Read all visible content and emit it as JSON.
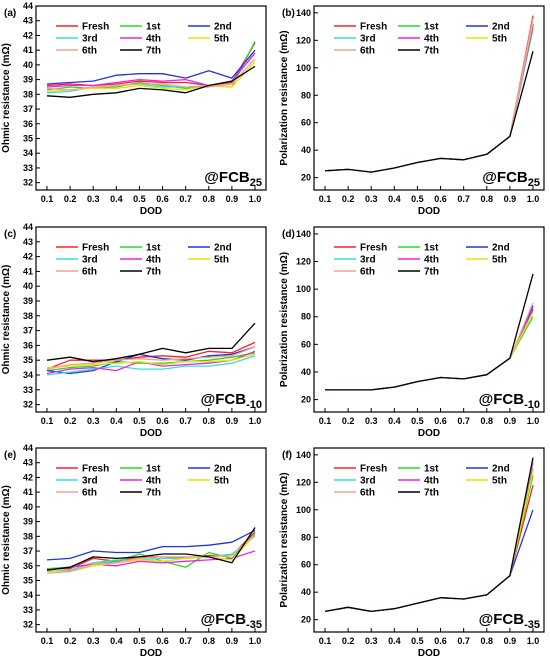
{
  "legend_order": [
    "Fresh",
    "1st",
    "2nd",
    "3rd",
    "4th",
    "5th",
    "6th",
    "7th"
  ],
  "colors": {
    "Fresh": "#ff2020",
    "1st": "#22dd22",
    "2nd": "#2233dd",
    "3rd": "#33e0e0",
    "4th": "#ee22ee",
    "5th": "#e6e600",
    "6th": "#f4a090",
    "7th": "#000000"
  },
  "chart_data": [
    {
      "type": "line",
      "panel": "(a)",
      "annotation": {
        "prefix": "@FCB",
        "sub": "25"
      },
      "xlabel": "DOD",
      "ylabel": "Ohmic resistance (mΩ)",
      "x": [
        "0.1",
        "0.2",
        "0.3",
        "0.4",
        "0.5",
        "0.6",
        "0.7",
        "0.8",
        "0.9",
        "1.0"
      ],
      "ylim": [
        31.5,
        44
      ],
      "yticks": [
        32,
        33,
        34,
        35,
        36,
        37,
        38,
        39,
        40,
        41,
        42,
        43,
        44
      ],
      "series": [
        {
          "name": "Fresh",
          "values": [
            38.6,
            38.7,
            38.6,
            38.7,
            38.9,
            38.8,
            38.8,
            38.6,
            38.8,
            41.5
          ]
        },
        {
          "name": "1st",
          "values": [
            38.3,
            38.5,
            38.4,
            38.5,
            38.8,
            38.6,
            38.4,
            38.6,
            38.5,
            41.6
          ]
        },
        {
          "name": "2nd",
          "values": [
            38.7,
            38.8,
            38.9,
            39.3,
            39.4,
            39.4,
            39.1,
            39.6,
            39.1,
            41.0
          ]
        },
        {
          "name": "3rd",
          "values": [
            38.1,
            38.2,
            38.5,
            38.6,
            38.7,
            38.5,
            38.5,
            38.6,
            38.9,
            40.8
          ]
        },
        {
          "name": "4th",
          "values": [
            38.5,
            38.6,
            38.6,
            38.8,
            39.0,
            38.9,
            39.0,
            38.6,
            38.9,
            40.8
          ]
        },
        {
          "name": "5th",
          "values": [
            38.2,
            38.3,
            38.4,
            38.4,
            38.6,
            38.4,
            38.3,
            38.6,
            38.5,
            40.2
          ]
        },
        {
          "name": "6th",
          "values": [
            38.4,
            38.3,
            38.5,
            38.6,
            38.7,
            38.7,
            38.5,
            38.5,
            38.7,
            40.4
          ]
        },
        {
          "name": "7th",
          "values": [
            37.9,
            37.8,
            38.0,
            38.1,
            38.4,
            38.3,
            38.1,
            38.6,
            38.9,
            39.9
          ]
        }
      ]
    },
    {
      "type": "line",
      "panel": "(b)",
      "annotation": {
        "prefix": "@FCB",
        "sub": "25"
      },
      "xlabel": "DOD",
      "ylabel": "Polarization resistance (mΩ)",
      "x": [
        "0.1",
        "0.2",
        "0.3",
        "0.4",
        "0.5",
        "0.6",
        "0.7",
        "0.8",
        "0.9",
        "1.0"
      ],
      "ylim": [
        11,
        145
      ],
      "yticks": [
        20,
        40,
        60,
        80,
        100,
        120,
        140
      ],
      "series": [
        {
          "name": "Fresh",
          "values": [
            25,
            26,
            24,
            27,
            31,
            34,
            33,
            37,
            50,
            138
          ]
        },
        {
          "name": "1st",
          "values": [
            25,
            26,
            24,
            27,
            31,
            34,
            33,
            37,
            50,
            130
          ]
        },
        {
          "name": "2nd",
          "values": [
            25,
            26,
            24,
            27,
            31,
            34,
            33,
            37,
            50,
            132
          ]
        },
        {
          "name": "3rd",
          "values": [
            25,
            26,
            24,
            27,
            31,
            34,
            33,
            37,
            50,
            128
          ]
        },
        {
          "name": "4th",
          "values": [
            25,
            26,
            24,
            27,
            31,
            34,
            33,
            37,
            50,
            131
          ]
        },
        {
          "name": "5th",
          "values": [
            25,
            26,
            24,
            27,
            31,
            34,
            33,
            37,
            50,
            134
          ]
        },
        {
          "name": "6th",
          "values": [
            25,
            26,
            24,
            27,
            31,
            34,
            33,
            37,
            50,
            136
          ]
        },
        {
          "name": "7th",
          "values": [
            25,
            26,
            24,
            27,
            31,
            34,
            33,
            37,
            50,
            112
          ]
        }
      ]
    },
    {
      "type": "line",
      "panel": "(c)",
      "annotation": {
        "prefix": "@FCB",
        "sub": "-10"
      },
      "xlabel": "DOD",
      "ylabel": "Ohmic resistance (mΩ)",
      "x": [
        "0.1",
        "0.2",
        "0.3",
        "0.4",
        "0.5",
        "0.6",
        "0.7",
        "0.8",
        "0.9",
        "1.0"
      ],
      "ylim": [
        31.5,
        44
      ],
      "yticks": [
        32,
        33,
        34,
        35,
        36,
        37,
        38,
        39,
        40,
        41,
        42,
        43,
        44
      ],
      "series": [
        {
          "name": "Fresh",
          "values": [
            34.4,
            35.0,
            35.0,
            35.0,
            35.2,
            35.3,
            35.2,
            35.6,
            35.5,
            36.2
          ]
        },
        {
          "name": "1st",
          "values": [
            34.3,
            34.5,
            34.6,
            34.9,
            34.8,
            34.8,
            34.9,
            35.0,
            35.2,
            35.5
          ]
        },
        {
          "name": "2nd",
          "values": [
            34.3,
            34.1,
            34.3,
            34.9,
            35.4,
            35.1,
            35.0,
            35.3,
            35.4,
            35.9
          ]
        },
        {
          "name": "3rd",
          "values": [
            34.0,
            34.2,
            34.4,
            34.6,
            34.4,
            34.4,
            34.6,
            34.6,
            34.8,
            35.3
          ]
        },
        {
          "name": "4th",
          "values": [
            34.1,
            34.4,
            34.5,
            34.3,
            34.9,
            34.6,
            34.7,
            34.8,
            35.0,
            35.6
          ]
        },
        {
          "name": "5th",
          "values": [
            34.5,
            34.6,
            34.7,
            34.8,
            34.9,
            34.7,
            34.9,
            34.9,
            35.0,
            35.4
          ]
        },
        {
          "name": "6th",
          "values": [
            34.4,
            34.7,
            34.8,
            35.0,
            35.1,
            35.0,
            35.1,
            35.2,
            35.3,
            35.9
          ]
        },
        {
          "name": "7th",
          "values": [
            35.0,
            35.2,
            34.9,
            35.1,
            35.4,
            35.8,
            35.5,
            35.8,
            35.8,
            37.5
          ]
        }
      ]
    },
    {
      "type": "line",
      "panel": "(d)",
      "annotation": {
        "prefix": "@FCB",
        "sub": "-10"
      },
      "xlabel": "DOD",
      "ylabel": "Polarization resistance (mΩ)",
      "x": [
        "0.1",
        "0.2",
        "0.3",
        "0.4",
        "0.5",
        "0.6",
        "0.7",
        "0.8",
        "0.9",
        "1.0"
      ],
      "ylim": [
        11,
        145
      ],
      "yticks": [
        20,
        40,
        60,
        80,
        100,
        120,
        140
      ],
      "series": [
        {
          "name": "Fresh",
          "values": [
            27,
            27,
            27,
            29,
            33,
            36,
            35,
            38,
            50,
            85
          ]
        },
        {
          "name": "1st",
          "values": [
            27,
            27,
            27,
            29,
            33,
            36,
            35,
            38,
            50,
            80
          ]
        },
        {
          "name": "2nd",
          "values": [
            27,
            27,
            27,
            29,
            33,
            36,
            35,
            38,
            50,
            88
          ]
        },
        {
          "name": "3rd",
          "values": [
            27,
            27,
            27,
            29,
            33,
            36,
            35,
            38,
            50,
            84
          ]
        },
        {
          "name": "4th",
          "values": [
            27,
            27,
            27,
            29,
            33,
            36,
            35,
            38,
            50,
            86
          ]
        },
        {
          "name": "5th",
          "values": [
            27,
            27,
            27,
            29,
            33,
            36,
            35,
            38,
            50,
            83
          ]
        },
        {
          "name": "6th",
          "values": [
            27,
            27,
            27,
            29,
            33,
            36,
            35,
            38,
            50,
            90
          ]
        },
        {
          "name": "7th",
          "values": [
            27,
            27,
            27,
            29,
            33,
            36,
            35,
            38,
            50,
            111
          ]
        }
      ]
    },
    {
      "type": "line",
      "panel": "(e)",
      "annotation": {
        "prefix": "@FCB",
        "sub": "-35"
      },
      "xlabel": "DOD",
      "ylabel": "Ohmic resistance (mΩ)",
      "x": [
        "0.1",
        "0.2",
        "0.3",
        "0.4",
        "0.5",
        "0.6",
        "0.7",
        "0.8",
        "0.9",
        "1.0"
      ],
      "ylim": [
        31.5,
        44
      ],
      "yticks": [
        32,
        33,
        34,
        35,
        36,
        37,
        38,
        39,
        40,
        41,
        42,
        43,
        44
      ],
      "series": [
        {
          "name": "Fresh",
          "values": [
            35.8,
            35.8,
            36.5,
            36.3,
            36.6,
            36.6,
            36.5,
            36.7,
            36.7,
            38.3
          ]
        },
        {
          "name": "1st",
          "values": [
            35.8,
            35.9,
            36.1,
            36.3,
            36.8,
            36.3,
            35.9,
            36.9,
            36.5,
            38.2
          ]
        },
        {
          "name": "2nd",
          "values": [
            36.4,
            36.5,
            37.0,
            36.9,
            36.9,
            37.3,
            37.3,
            37.4,
            37.6,
            38.4
          ]
        },
        {
          "name": "3rd",
          "values": [
            35.6,
            35.7,
            36.2,
            36.4,
            36.4,
            36.5,
            36.5,
            36.6,
            36.8,
            38.0
          ]
        },
        {
          "name": "4th",
          "values": [
            35.7,
            35.9,
            36.1,
            36.0,
            36.3,
            36.2,
            36.3,
            36.4,
            36.5,
            37.0
          ]
        },
        {
          "name": "5th",
          "values": [
            35.6,
            35.6,
            36.0,
            36.2,
            36.4,
            36.3,
            36.5,
            36.6,
            36.4,
            38.1
          ]
        },
        {
          "name": "6th",
          "values": [
            35.5,
            35.6,
            36.1,
            36.2,
            36.5,
            36.6,
            36.6,
            36.6,
            36.7,
            38.1
          ]
        },
        {
          "name": "7th",
          "values": [
            35.7,
            35.9,
            36.6,
            36.5,
            36.6,
            36.8,
            36.8,
            36.6,
            36.2,
            38.6
          ]
        }
      ]
    },
    {
      "type": "line",
      "panel": "(f)",
      "annotation": {
        "prefix": "@FCB",
        "sub": "-35"
      },
      "xlabel": "DOD",
      "ylabel": "Polarization resistance (mΩ)",
      "x": [
        "0.1",
        "0.2",
        "0.3",
        "0.4",
        "0.5",
        "0.6",
        "0.7",
        "0.8",
        "0.9",
        "1.0"
      ],
      "ylim": [
        11,
        145
      ],
      "yticks": [
        20,
        40,
        60,
        80,
        100,
        120,
        140
      ],
      "series": [
        {
          "name": "Fresh",
          "values": [
            26,
            29,
            26,
            28,
            32,
            36,
            35,
            38,
            52,
            118
          ]
        },
        {
          "name": "1st",
          "values": [
            26,
            29,
            26,
            28,
            32,
            36,
            35,
            38,
            52,
            125
          ]
        },
        {
          "name": "2nd",
          "values": [
            26,
            29,
            26,
            28,
            32,
            36,
            35,
            38,
            52,
            100
          ]
        },
        {
          "name": "3rd",
          "values": [
            26,
            29,
            26,
            28,
            32,
            36,
            35,
            38,
            52,
            130
          ]
        },
        {
          "name": "4th",
          "values": [
            26,
            29,
            26,
            28,
            32,
            36,
            35,
            38,
            52,
            134
          ]
        },
        {
          "name": "5th",
          "values": [
            26,
            29,
            26,
            28,
            32,
            36,
            35,
            38,
            52,
            128
          ]
        },
        {
          "name": "6th",
          "values": [
            26,
            29,
            26,
            28,
            32,
            36,
            35,
            38,
            52,
            136
          ]
        },
        {
          "name": "7th",
          "values": [
            26,
            29,
            26,
            28,
            32,
            36,
            35,
            38,
            52,
            138
          ]
        }
      ]
    }
  ]
}
